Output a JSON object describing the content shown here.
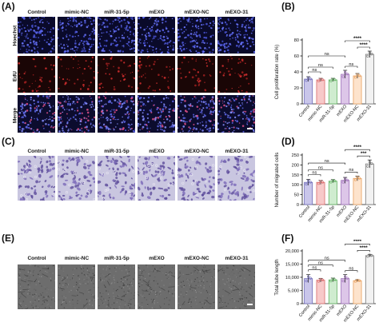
{
  "panel_labels": {
    "A": "(A)",
    "B": "(B)",
    "C": "(C)",
    "D": "(D)",
    "E": "(E)",
    "F": "(F)"
  },
  "groups": [
    "Control",
    "mimic-NC",
    "miR-31-5p",
    "mEXO",
    "mEXO-NC",
    "mEXO-31"
  ],
  "row_labels_A": [
    "Hoechst",
    "EdU",
    "Merge"
  ],
  "colors": {
    "bar_fills": [
      "#c9c6ea",
      "#f7c9c9",
      "#cfeccf",
      "#ddc6e8",
      "#fde3cc",
      "#f2f2f2"
    ],
    "bar_edges": [
      "#6f6bb9",
      "#d96b6b",
      "#5fb05f",
      "#9a6ab5",
      "#e8a05e",
      "#777777"
    ],
    "hoechst_bg": "#0a0a2a",
    "edu_bg": "#1a0606",
    "merge_bg": "#0c0c2e",
    "crystal_bg": "#c9c6e0",
    "tube_bg": "#6d6d6d"
  },
  "chart_data": [
    {
      "type": "bar",
      "panel": "B",
      "categories": [
        "Control",
        "mimic-NC",
        "miR-31-5p",
        "mEXO",
        "mEXO-NC",
        "mEXO-31"
      ],
      "values": [
        31,
        30,
        30,
        37,
        35,
        62
      ],
      "errors": [
        3,
        2,
        2,
        5,
        3,
        4
      ],
      "ylabel": "Cell proliferation rate (%)",
      "ylim": [
        0,
        80
      ],
      "yticks": [
        "0",
        "20",
        "40",
        "60",
        "80"
      ],
      "significance": [
        {
          "from": 0,
          "to": 1,
          "label": "ns"
        },
        {
          "from": 0,
          "to": 2,
          "label": "ns"
        },
        {
          "from": 0,
          "to": 3,
          "label": "ns"
        },
        {
          "from": 3,
          "to": 4,
          "label": "ns"
        },
        {
          "from": 4,
          "to": 5,
          "label": "****"
        },
        {
          "from": 3,
          "to": 5,
          "label": "****"
        }
      ]
    },
    {
      "type": "bar",
      "panel": "D",
      "categories": [
        "Control",
        "mimic-NC",
        "miR-31-5p",
        "mEXO",
        "mEXO-NC",
        "mEXO-31"
      ],
      "values": [
        112,
        112,
        118,
        122,
        132,
        205
      ],
      "errors": [
        15,
        10,
        8,
        15,
        12,
        20
      ],
      "ylabel": "Number of migrated cells",
      "ylim": [
        0,
        250
      ],
      "yticks": [
        "0",
        "50",
        "100",
        "150",
        "200",
        "250"
      ],
      "significance": [
        {
          "from": 0,
          "to": 1,
          "label": "ns"
        },
        {
          "from": 0,
          "to": 2,
          "label": "ns"
        },
        {
          "from": 0,
          "to": 3,
          "label": "ns"
        },
        {
          "from": 3,
          "to": 4,
          "label": "ns"
        },
        {
          "from": 4,
          "to": 5,
          "label": "***"
        },
        {
          "from": 3,
          "to": 5,
          "label": "****"
        }
      ]
    },
    {
      "type": "bar",
      "panel": "F",
      "categories": [
        "Control",
        "mimic-NC",
        "miR-31-5p",
        "mEXO",
        "mEXO-NC",
        "mEXO-31"
      ],
      "values": [
        9500,
        8900,
        9000,
        9500,
        8700,
        18200
      ],
      "errors": [
        1500,
        700,
        700,
        1500,
        400,
        500
      ],
      "ylabel": "Total tube length",
      "ylim": [
        0,
        20000
      ],
      "yticks": [
        "0",
        "5,000",
        "10,000",
        "15,000",
        "20,000"
      ],
      "significance": [
        {
          "from": 0,
          "to": 1,
          "label": "ns"
        },
        {
          "from": 0,
          "to": 2,
          "label": "ns"
        },
        {
          "from": 0,
          "to": 3,
          "label": "ns"
        },
        {
          "from": 3,
          "to": 4,
          "label": "ns"
        },
        {
          "from": 4,
          "to": 5,
          "label": "****"
        },
        {
          "from": 3,
          "to": 5,
          "label": "****"
        }
      ]
    }
  ]
}
